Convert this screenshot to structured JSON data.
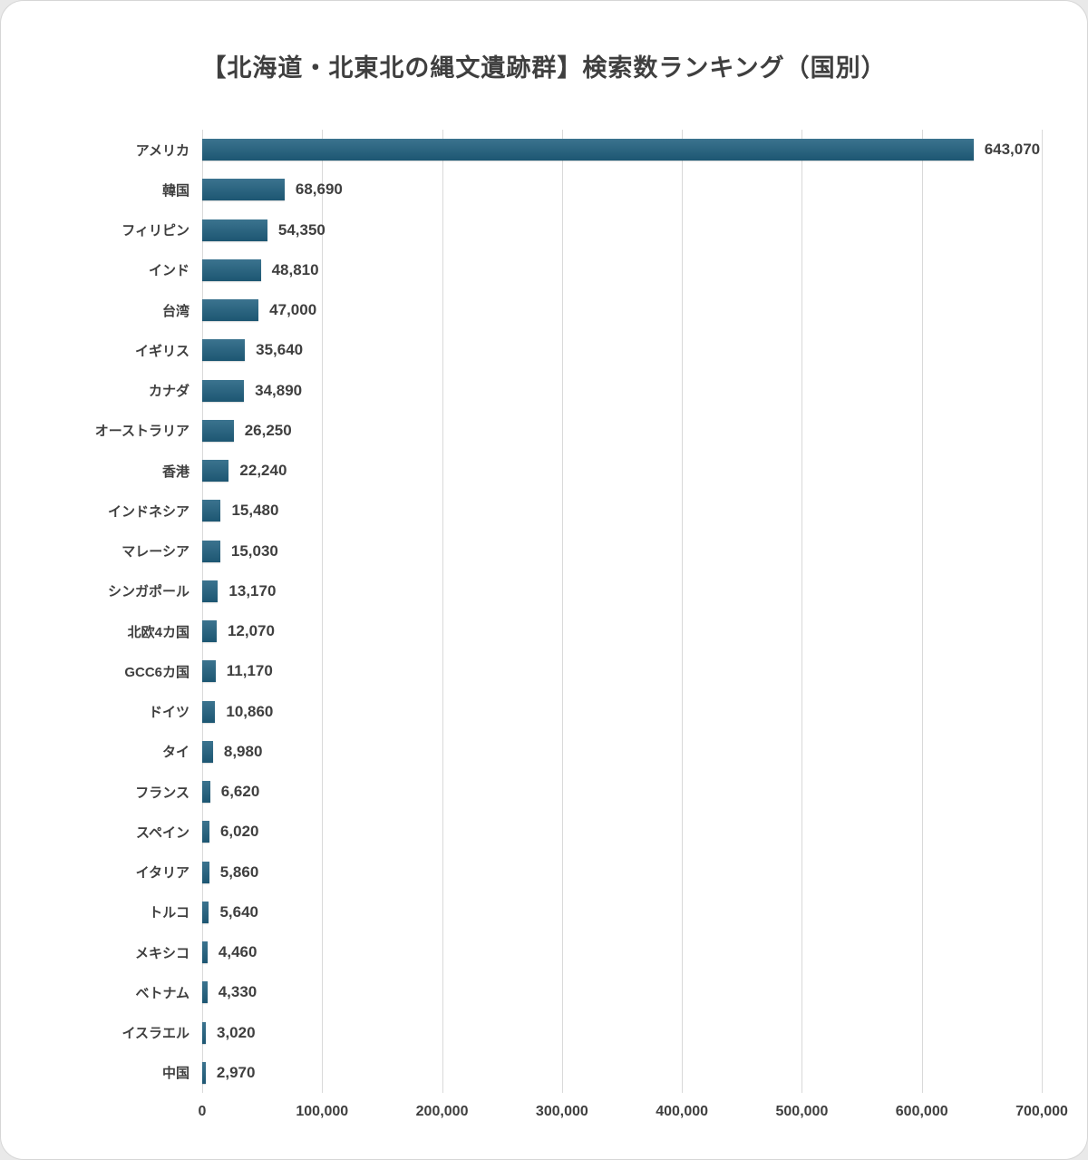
{
  "chart_data": {
    "type": "bar",
    "orientation": "horizontal",
    "title": "【北海道・北東北の縄文遺跡群】検索数ランキング（国別）",
    "xlabel": "",
    "ylabel": "",
    "xlim": [
      0,
      700000
    ],
    "x_ticks": [
      0,
      100000,
      200000,
      300000,
      400000,
      500000,
      600000,
      700000
    ],
    "x_tick_labels": [
      "0",
      "100,000",
      "200,000",
      "300,000",
      "400,000",
      "500,000",
      "600,000",
      "700,000"
    ],
    "grid": true,
    "legend": false,
    "bar_color": "#20607f",
    "text_color": "#3f3f3f",
    "gridline_color": "#d9d9d9",
    "categories": [
      "アメリカ",
      "韓国",
      "フィリピン",
      "インド",
      "台湾",
      "イギリス",
      "カナダ",
      "オーストラリア",
      "香港",
      "インドネシア",
      "マレーシア",
      "シンガポール",
      "北欧4カ国",
      "GCC6カ国",
      "ドイツ",
      "タイ",
      "フランス",
      "スペイン",
      "イタリア",
      "トルコ",
      "メキシコ",
      "ベトナム",
      "イスラエル",
      "中国"
    ],
    "values": [
      643070,
      68690,
      54350,
      48810,
      47000,
      35640,
      34890,
      26250,
      22240,
      15480,
      15030,
      13170,
      12070,
      11170,
      10860,
      8980,
      6620,
      6020,
      5860,
      5640,
      4460,
      4330,
      3020,
      2970
    ],
    "value_labels": [
      "643,070",
      "68,690",
      "54,350",
      "48,810",
      "47,000",
      "35,640",
      "34,890",
      "26,250",
      "22,240",
      "15,480",
      "15,030",
      "13,170",
      "12,070",
      "11,170",
      "10,860",
      "8,980",
      "6,620",
      "6,020",
      "5,860",
      "5,640",
      "4,460",
      "4,330",
      "3,020",
      "2,970"
    ]
  }
}
